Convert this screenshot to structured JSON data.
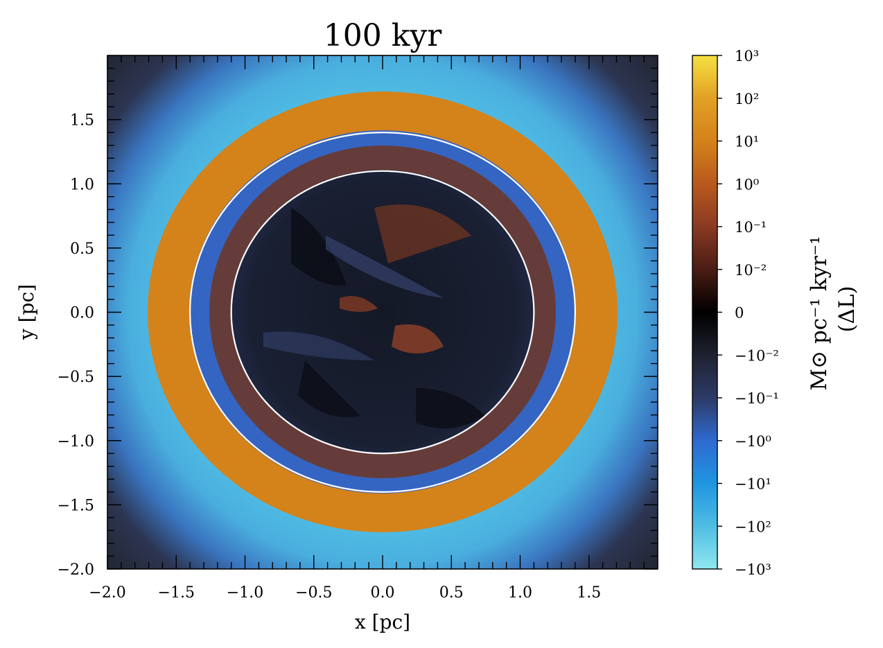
{
  "chart_data": {
    "type": "heatmap",
    "title": "100 kyr",
    "xlabel": "x [pc]",
    "ylabel": "y [pc]",
    "xlim": [
      -2.0,
      2.0
    ],
    "ylim": [
      -2.0,
      2.0
    ],
    "x_ticks": [
      -2.0,
      -1.5,
      -1.0,
      -0.5,
      0.0,
      0.5,
      1.0,
      1.5
    ],
    "x_tick_labels": [
      "−2.0",
      "−1.5",
      "−1.0",
      "−0.5",
      "0.0",
      "0.5",
      "1.0",
      "1.5"
    ],
    "y_ticks": [
      -2.0,
      -1.5,
      -1.0,
      -0.5,
      0.0,
      0.5,
      1.0,
      1.5
    ],
    "y_tick_labels": [
      "−2.0",
      "−1.5",
      "−1.0",
      "−0.5",
      "0.0",
      "0.5",
      "1.0",
      "1.5"
    ],
    "circles": [
      {
        "radius": 1.4,
        "color": "#ffffff"
      },
      {
        "radius": 1.1,
        "color": "#ffffff"
      }
    ],
    "rings": [
      {
        "r_in": 1.4,
        "r_out": 1.7,
        "color": "#d4821a",
        "level": "10^1"
      },
      {
        "r_in": 1.7,
        "r_out": 2.8,
        "color": "#4fbde4",
        "level": "-10^2"
      }
    ],
    "colorbar": {
      "scale": "symlog",
      "label_line1": "M⊙ pc⁻¹ kyr⁻¹",
      "label_line2": "(ΔL)",
      "tick_labels": [
        "10³",
        "10²",
        "10¹",
        "10⁰",
        "10⁻¹",
        "10⁻²",
        "0",
        "−10⁻²",
        "−10⁻¹",
        "−10⁰",
        "−10¹",
        "−10²",
        "−10³"
      ],
      "colors": [
        "#f5e040",
        "#e2a025",
        "#d4821a",
        "#b8591e",
        "#8a3a22",
        "#4a1c14",
        "#000000",
        "#1e2230",
        "#2c3a66",
        "#2f6ad0",
        "#1f95e0",
        "#4fbde4",
        "#8fe8ee"
      ]
    }
  }
}
